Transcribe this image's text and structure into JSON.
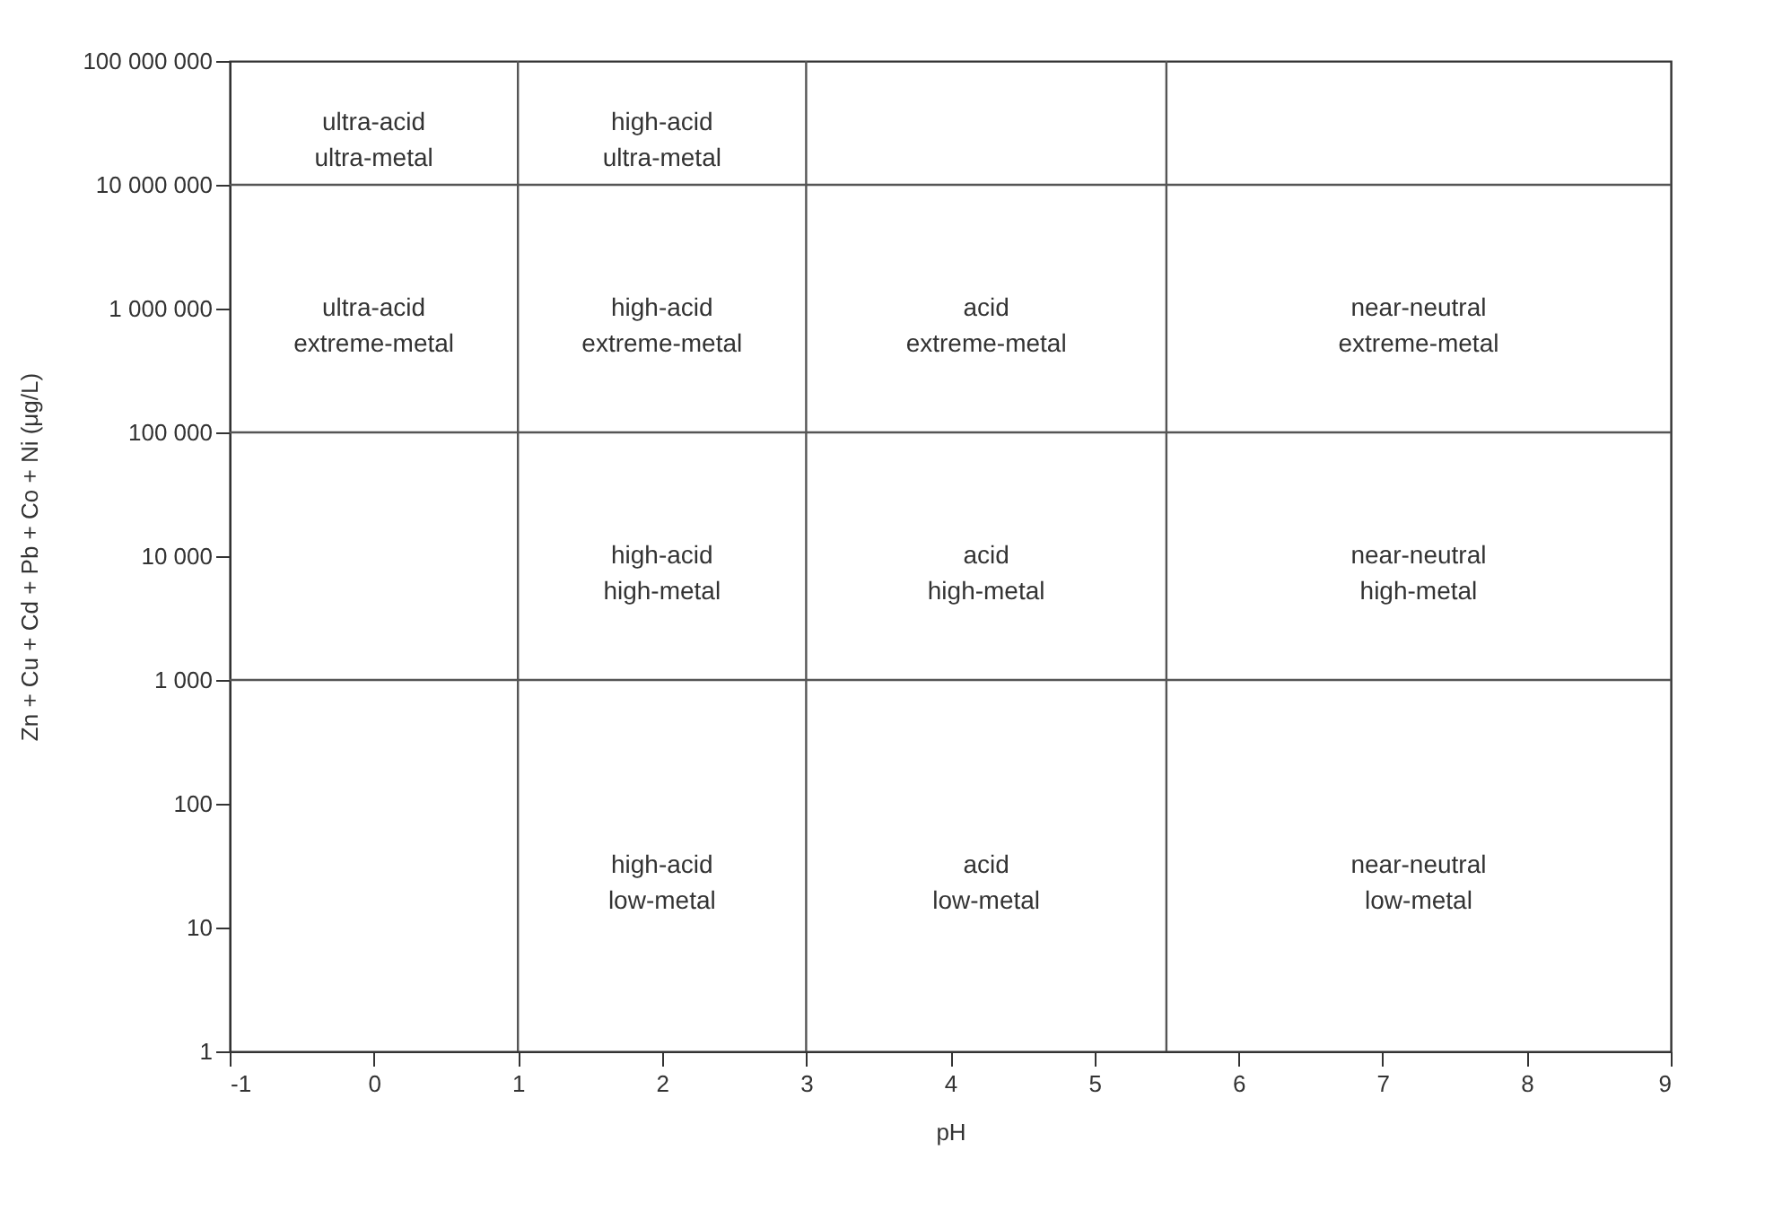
{
  "chart_data": {
    "type": "scatter",
    "xlabel": "pH",
    "ylabel": "Zn + Cu + Cd + Pb + Co + Ni (μg/L)",
    "xlim": [
      -1,
      9
    ],
    "xticks": [
      -1,
      0,
      1,
      2,
      3,
      4,
      5,
      6,
      7,
      8,
      9
    ],
    "ylim": [
      1,
      100000000
    ],
    "log": "y",
    "yticks": [
      1,
      10,
      100,
      {
        "value": 1000,
        "label": "1 000"
      },
      {
        "value": 10000,
        "label": "10 000"
      },
      {
        "value": 100000,
        "label": "100 000"
      },
      {
        "value": 1000000,
        "label": "1 000 000"
      },
      {
        "value": 10000000,
        "label": "10 000 000"
      },
      {
        "value": 100000000,
        "label": "100 000 000"
      }
    ],
    "grid": false,
    "ref_lines": [
      {
        "axis": "x",
        "value": 1,
        "color": "#555555"
      },
      {
        "axis": "x",
        "value": 3,
        "color": "#555555"
      },
      {
        "axis": "x",
        "value": 5.5,
        "color": "#555555"
      },
      {
        "axis": "y",
        "value": 1000,
        "color": "#555555"
      },
      {
        "axis": "y",
        "value": 100000,
        "color": "#555555"
      },
      {
        "axis": "y",
        "value": 10000000,
        "color": "#555555"
      }
    ],
    "annotations": [
      "ultra-acid\nultra-metal",
      "high-acid\nultra-metal",
      "ultra-acid\nextreme-metal",
      "high-acid\nextreme-metal",
      "acid\nextreme-metal",
      "near-neutral\nextreme-metal",
      "high-acid\nhigh-metal",
      "acid\nhigh-metal",
      "near-neutral\nhigh-metal",
      "high-acid\nlow-metal",
      "acid\nlow-metal",
      "near-neutral\nlow-metal"
    ]
  }
}
